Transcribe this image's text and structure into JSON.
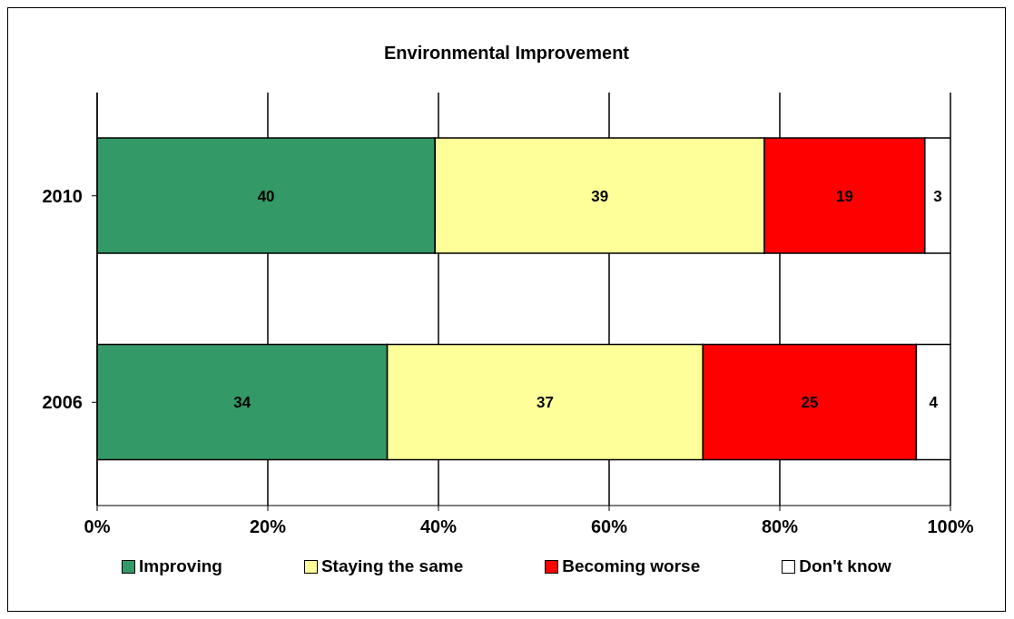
{
  "chart_data": {
    "type": "bar",
    "title": "Environmental Improvement",
    "orientation": "horizontal",
    "stacked": true,
    "categories": [
      "2010",
      "2006"
    ],
    "series": [
      {
        "name": "Improving",
        "color": "#339966",
        "values": [
          39.6,
          34
        ],
        "value_labels": [
          "40",
          "34"
        ]
      },
      {
        "name": "Staying the same",
        "color": "#ffff99",
        "values": [
          38.6,
          37
        ],
        "value_labels": [
          "39",
          "37"
        ]
      },
      {
        "name": "Becoming worse",
        "color": "#ff0000",
        "values": [
          18.8,
          25
        ],
        "value_labels": [
          "19",
          "25"
        ]
      },
      {
        "name": "Don't know",
        "color": "#ffffff",
        "values": [
          3.0,
          4
        ],
        "value_labels": [
          "3",
          "4"
        ]
      }
    ],
    "xlim": [
      0,
      100
    ],
    "xticks": [
      {
        "value": 0,
        "label": "0%"
      },
      {
        "value": 20,
        "label": "20%"
      },
      {
        "value": 40,
        "label": "40%"
      },
      {
        "value": 60,
        "label": "60%"
      },
      {
        "value": 80,
        "label": "80%"
      },
      {
        "value": 100,
        "label": "100%"
      }
    ],
    "grid": "x",
    "legend": "bottom"
  }
}
